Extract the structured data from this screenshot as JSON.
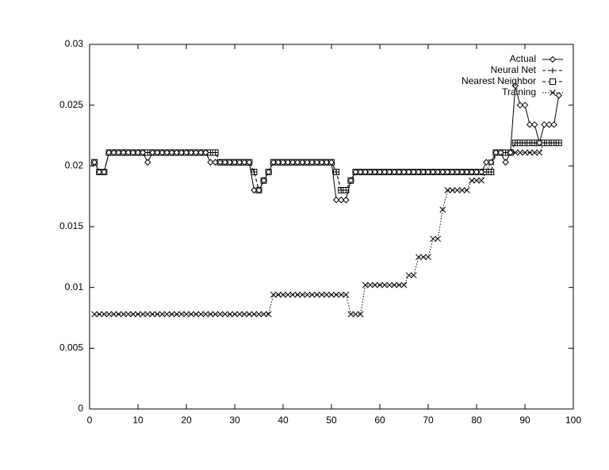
{
  "chart_data": {
    "type": "line",
    "x": [
      1,
      2,
      3,
      4,
      5,
      6,
      7,
      8,
      9,
      10,
      11,
      12,
      13,
      14,
      15,
      16,
      17,
      18,
      19,
      20,
      21,
      22,
      23,
      24,
      25,
      26,
      27,
      28,
      29,
      30,
      31,
      32,
      33,
      34,
      35,
      36,
      37,
      38,
      39,
      40,
      41,
      42,
      43,
      44,
      45,
      46,
      47,
      48,
      49,
      50,
      51,
      52,
      53,
      54,
      55,
      56,
      57,
      58,
      59,
      60,
      61,
      62,
      63,
      64,
      65,
      66,
      67,
      68,
      69,
      70,
      71,
      72,
      73,
      74,
      75,
      76,
      77,
      78,
      79,
      80,
      81,
      82,
      83,
      84,
      85,
      86,
      87,
      88,
      89,
      90,
      91,
      92,
      93,
      94,
      95,
      96,
      97
    ],
    "series": [
      {
        "name": "Actual",
        "color": "#000000",
        "marker": "diamond",
        "dash": "solid",
        "values": [
          0.0203,
          0.0195,
          0.0195,
          0.0211,
          0.0211,
          0.0211,
          0.0211,
          0.0211,
          0.0211,
          0.0211,
          0.0211,
          0.0203,
          0.0211,
          0.0211,
          0.0211,
          0.0211,
          0.0211,
          0.0211,
          0.0211,
          0.0211,
          0.0211,
          0.0211,
          0.0211,
          0.0211,
          0.0203,
          0.0203,
          0.0203,
          0.0203,
          0.0203,
          0.0203,
          0.0203,
          0.0203,
          0.0203,
          0.018,
          0.018,
          0.0188,
          0.0195,
          0.0203,
          0.0203,
          0.0203,
          0.0203,
          0.0203,
          0.0203,
          0.0203,
          0.0203,
          0.0203,
          0.0203,
          0.0203,
          0.0203,
          0.0203,
          0.0172,
          0.0172,
          0.0172,
          0.0188,
          0.0195,
          0.0195,
          0.0195,
          0.0195,
          0.0195,
          0.0195,
          0.0195,
          0.0195,
          0.0195,
          0.0195,
          0.0195,
          0.0195,
          0.0195,
          0.0195,
          0.0195,
          0.0195,
          0.0195,
          0.0195,
          0.0195,
          0.0195,
          0.0195,
          0.0195,
          0.0195,
          0.0195,
          0.0195,
          0.0195,
          0.0195,
          0.0203,
          0.0203,
          0.0211,
          0.0211,
          0.0203,
          0.0211,
          0.0266,
          0.025,
          0.025,
          0.0234,
          0.0234,
          0.0219,
          0.0234,
          0.0234,
          0.0234,
          0.0258
        ]
      },
      {
        "name": "Neural Net",
        "color": "#000000",
        "marker": "plus",
        "dash": "dashed",
        "values": [
          0.0203,
          0.0195,
          0.0195,
          0.0211,
          0.0211,
          0.0211,
          0.0211,
          0.0211,
          0.0211,
          0.0211,
          0.0211,
          0.0211,
          0.0211,
          0.0211,
          0.0211,
          0.0211,
          0.0211,
          0.0211,
          0.0211,
          0.0211,
          0.0211,
          0.0211,
          0.0211,
          0.0211,
          0.0211,
          0.0211,
          0.0203,
          0.0203,
          0.0203,
          0.0203,
          0.0203,
          0.0203,
          0.0203,
          0.0195,
          0.018,
          0.0188,
          0.0195,
          0.0203,
          0.0203,
          0.0203,
          0.0203,
          0.0203,
          0.0203,
          0.0203,
          0.0203,
          0.0203,
          0.0203,
          0.0203,
          0.0203,
          0.0203,
          0.0195,
          0.018,
          0.018,
          0.0188,
          0.0195,
          0.0195,
          0.0195,
          0.0195,
          0.0195,
          0.0195,
          0.0195,
          0.0195,
          0.0195,
          0.0195,
          0.0195,
          0.0195,
          0.0195,
          0.0195,
          0.0195,
          0.0195,
          0.0195,
          0.0195,
          0.0195,
          0.0195,
          0.0195,
          0.0195,
          0.0195,
          0.0195,
          0.0195,
          0.0195,
          0.0195,
          0.0195,
          0.0195,
          0.0211,
          0.0211,
          0.0211,
          0.0211,
          0.0219,
          0.0219,
          0.0219,
          0.0219,
          0.0219,
          0.0219,
          0.0219,
          0.0219,
          0.0219,
          0.0219
        ]
      },
      {
        "name": "Nearest Neighbor",
        "color": "#000000",
        "marker": "square",
        "dash": "dashed",
        "values": [
          0.0203,
          0.0195,
          0.0195,
          0.0211,
          0.0211,
          0.0211,
          0.0211,
          0.0211,
          0.0211,
          0.0211,
          0.0211,
          0.0211,
          0.0211,
          0.0211,
          0.0211,
          0.0211,
          0.0211,
          0.0211,
          0.0211,
          0.0211,
          0.0211,
          0.0211,
          0.0211,
          0.0211,
          0.0211,
          0.0211,
          0.0203,
          0.0203,
          0.0203,
          0.0203,
          0.0203,
          0.0203,
          0.0203,
          0.0195,
          0.018,
          0.0188,
          0.0195,
          0.0203,
          0.0203,
          0.0203,
          0.0203,
          0.0203,
          0.0203,
          0.0203,
          0.0203,
          0.0203,
          0.0203,
          0.0203,
          0.0203,
          0.0203,
          0.0195,
          0.018,
          0.018,
          0.0188,
          0.0195,
          0.0195,
          0.0195,
          0.0195,
          0.0195,
          0.0195,
          0.0195,
          0.0195,
          0.0195,
          0.0195,
          0.0195,
          0.0195,
          0.0195,
          0.0195,
          0.0195,
          0.0195,
          0.0195,
          0.0195,
          0.0195,
          0.0195,
          0.0195,
          0.0195,
          0.0195,
          0.0195,
          0.0195,
          0.0195,
          0.0195,
          0.0195,
          0.0195,
          0.0211,
          0.0211,
          0.0211,
          0.0211,
          0.0219,
          0.0219,
          0.0219,
          0.0219,
          0.0219,
          0.0219,
          0.0219,
          0.0219,
          0.0219,
          0.0219
        ]
      },
      {
        "name": "Training",
        "color": "#000000",
        "marker": "cross",
        "dash": "dotted",
        "values": [
          0.0078,
          0.0078,
          0.0078,
          0.0078,
          0.0078,
          0.0078,
          0.0078,
          0.0078,
          0.0078,
          0.0078,
          0.0078,
          0.0078,
          0.0078,
          0.0078,
          0.0078,
          0.0078,
          0.0078,
          0.0078,
          0.0078,
          0.0078,
          0.0078,
          0.0078,
          0.0078,
          0.0078,
          0.0078,
          0.0078,
          0.0078,
          0.0078,
          0.0078,
          0.0078,
          0.0078,
          0.0078,
          0.0078,
          0.0078,
          0.0078,
          0.0078,
          0.0078,
          0.0094,
          0.0094,
          0.0094,
          0.0094,
          0.0094,
          0.0094,
          0.0094,
          0.0094,
          0.0094,
          0.0094,
          0.0094,
          0.0094,
          0.0094,
          0.0094,
          0.0094,
          0.0094,
          0.0078,
          0.0078,
          0.0078,
          0.0102,
          0.0102,
          0.0102,
          0.0102,
          0.0102,
          0.0102,
          0.0102,
          0.0102,
          0.0102,
          0.011,
          0.011,
          0.0125,
          0.0125,
          0.0125,
          0.014,
          0.014,
          0.0164,
          0.018,
          0.018,
          0.018,
          0.018,
          0.018,
          0.0188,
          0.0188,
          0.0188,
          0.0195,
          0.0203,
          0.0211,
          0.0211,
          0.0211,
          0.0211,
          0.0211,
          0.0211,
          0.0211,
          0.0211,
          0.0211,
          0.0211,
          0.0219,
          0.0219,
          0.0219,
          0.0219
        ]
      }
    ],
    "xlim": [
      0,
      100
    ],
    "xticks": [
      0,
      10,
      20,
      30,
      40,
      50,
      60,
      70,
      80,
      90,
      100
    ],
    "ylim": [
      0,
      0.03
    ],
    "yticks": [
      0,
      0.005,
      0.01,
      0.015,
      0.02,
      0.025,
      0.03
    ],
    "grid": false,
    "legend": "upper right"
  }
}
